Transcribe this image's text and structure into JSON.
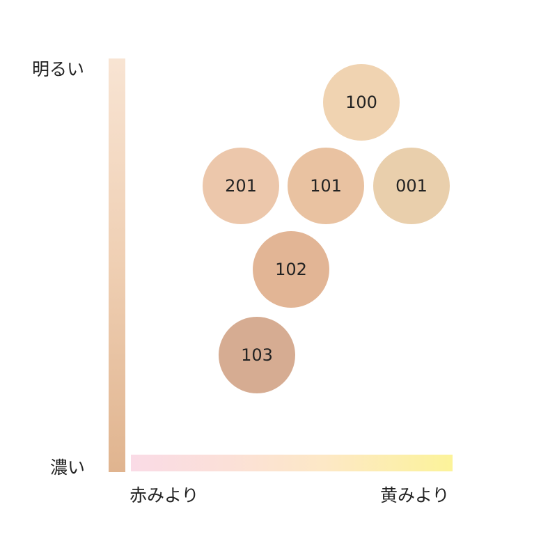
{
  "axes": {
    "top_label": "明るい",
    "bottom_label": "濃い",
    "left_label": "赤みより",
    "right_label": "黄みより"
  },
  "shades": [
    {
      "code": "100",
      "color": "#f0d3b1"
    },
    {
      "code": "201",
      "color": "#ecc7ab"
    },
    {
      "code": "101",
      "color": "#e9c2a1"
    },
    {
      "code": "001",
      "color": "#e9cfac"
    },
    {
      "code": "102",
      "color": "#e2b595"
    },
    {
      "code": "103",
      "color": "#d6ac92"
    }
  ]
}
